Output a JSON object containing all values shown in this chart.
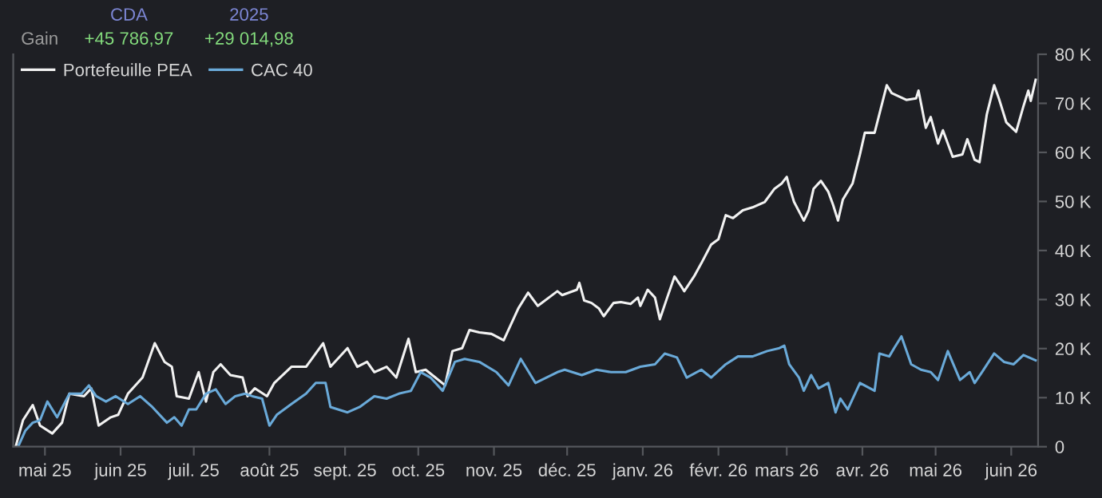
{
  "chart_data": {
    "type": "line",
    "annotations": [
      "CDA",
      "2025",
      "Gain",
      "+45 786,97",
      "+29 014,98"
    ],
    "series": [
      {
        "name": "Portefeuille PEA",
        "color": "#f2f2f2",
        "x": [
          "2025-04-19",
          "2025-04-22",
          "2025-04-26",
          "2025-04-29",
          "2025-05-04",
          "2025-05-08",
          "2025-05-11",
          "2025-05-17",
          "2025-05-20",
          "2025-05-23",
          "2025-05-28",
          "2025-05-31",
          "2025-06-04",
          "2025-06-10",
          "2025-06-15",
          "2025-06-19",
          "2025-06-22",
          "2025-06-24",
          "2025-06-29",
          "2025-07-03",
          "2025-07-06",
          "2025-07-09",
          "2025-07-12",
          "2025-07-16",
          "2025-07-21",
          "2025-07-23",
          "2025-07-26",
          "2025-07-31",
          "2025-08-03",
          "2025-08-10",
          "2025-08-16",
          "2025-08-23",
          "2025-08-26",
          "2025-09-02",
          "2025-09-06",
          "2025-09-10",
          "2025-09-13",
          "2025-09-18",
          "2025-09-22",
          "2025-09-27",
          "2025-09-30",
          "2025-10-04",
          "2025-10-08",
          "2025-10-12",
          "2025-10-15",
          "2025-10-19",
          "2025-10-22",
          "2025-10-26",
          "2025-10-31",
          "2025-11-05",
          "2025-11-11",
          "2025-11-15",
          "2025-11-19",
          "2025-11-27",
          "2025-11-29",
          "2025-12-05",
          "2025-12-06",
          "2025-12-08",
          "2025-12-11",
          "2025-12-14",
          "2025-12-16",
          "2025-12-20",
          "2025-12-23",
          "2025-12-27",
          "2025-12-30",
          "2025-12-31",
          "2026-01-03",
          "2026-01-06",
          "2026-01-08",
          "2026-01-11",
          "2026-01-14",
          "2026-01-17",
          "2026-01-18",
          "2026-01-22",
          "2026-01-25",
          "2026-01-29",
          "2026-02-01",
          "2026-02-04",
          "2026-02-07",
          "2026-02-11",
          "2026-02-15",
          "2026-02-20",
          "2026-02-24",
          "2026-02-27",
          "2026-03-01",
          "2026-03-02",
          "2026-03-04",
          "2026-03-08",
          "2026-03-10",
          "2026-03-12",
          "2026-03-15",
          "2026-03-18",
          "2026-03-20",
          "2026-03-22",
          "2026-03-24",
          "2026-03-28",
          "2026-03-31",
          "2026-04-02",
          "2026-04-06",
          "2026-04-11",
          "2026-04-13",
          "2026-04-19",
          "2026-04-23",
          "2026-04-24",
          "2026-04-27",
          "2026-04-29",
          "2026-05-02",
          "2026-05-04",
          "2026-05-08",
          "2026-05-12",
          "2026-05-14",
          "2026-05-17",
          "2026-05-19",
          "2026-05-22",
          "2026-05-25",
          "2026-05-27",
          "2026-05-30",
          "2026-06-03",
          "2026-06-06",
          "2026-06-08",
          "2026-06-09",
          "2026-06-11"
        ],
        "values": [
          0,
          5400,
          8500,
          4300,
          2700,
          4900,
          10800,
          10300,
          11900,
          4300,
          6000,
          6500,
          10800,
          14100,
          21100,
          17300,
          16300,
          10300,
          9800,
          15200,
          9200,
          15200,
          16800,
          14600,
          14100,
          10300,
          11900,
          10300,
          13000,
          16300,
          16300,
          21100,
          16300,
          20100,
          16300,
          17300,
          15200,
          16300,
          14100,
          22000,
          15200,
          15700,
          14100,
          12500,
          19500,
          20100,
          23800,
          23300,
          23000,
          21700,
          28200,
          31400,
          28700,
          31700,
          30900,
          32000,
          33400,
          29800,
          29300,
          28200,
          26600,
          29300,
          29500,
          29100,
          30400,
          28700,
          32000,
          30400,
          26000,
          30400,
          34700,
          32500,
          31700,
          34700,
          37400,
          41200,
          42300,
          47200,
          46600,
          48200,
          48800,
          49900,
          52600,
          53700,
          55000,
          53100,
          49900,
          46100,
          48200,
          52600,
          54200,
          52000,
          49300,
          46100,
          50400,
          53700,
          59600,
          64000,
          64000,
          73700,
          72100,
          70700,
          71000,
          72600,
          65000,
          67200,
          61800,
          64500,
          59100,
          59600,
          62700,
          58500,
          58000,
          67800,
          73700,
          70900,
          66100,
          64200,
          69400,
          72600,
          70500,
          74800
        ]
      },
      {
        "name": "CAC 40",
        "color": "#6aaad9",
        "x": [
          "2025-04-20",
          "2025-04-23",
          "2025-04-26",
          "2025-04-29",
          "2025-05-02",
          "2025-05-06",
          "2025-05-11",
          "2025-05-16",
          "2025-05-19",
          "2025-05-22",
          "2025-05-26",
          "2025-05-30",
          "2025-06-04",
          "2025-06-09",
          "2025-06-14",
          "2025-06-20",
          "2025-06-23",
          "2025-06-26",
          "2025-06-29",
          "2025-07-02",
          "2025-07-06",
          "2025-07-10",
          "2025-07-14",
          "2025-07-18",
          "2025-07-22",
          "2025-07-25",
          "2025-07-29",
          "2025-08-01",
          "2025-08-04",
          "2025-08-10",
          "2025-08-16",
          "2025-08-20",
          "2025-08-24",
          "2025-08-26",
          "2025-09-02",
          "2025-09-07",
          "2025-09-13",
          "2025-09-18",
          "2025-09-23",
          "2025-09-28",
          "2025-10-02",
          "2025-10-06",
          "2025-10-11",
          "2025-10-16",
          "2025-10-20",
          "2025-10-26",
          "2025-11-02",
          "2025-11-07",
          "2025-11-12",
          "2025-11-18",
          "2025-11-27",
          "2025-11-30",
          "2025-12-07",
          "2025-12-13",
          "2025-12-19",
          "2025-12-25",
          "2025-12-31",
          "2026-01-06",
          "2026-01-10",
          "2026-01-15",
          "2026-01-19",
          "2026-01-25",
          "2026-01-29",
          "2026-02-04",
          "2026-02-09",
          "2026-02-15",
          "2026-02-21",
          "2026-02-26",
          "2026-02-28",
          "2026-03-02",
          "2026-03-06",
          "2026-03-08",
          "2026-03-11",
          "2026-03-14",
          "2026-03-18",
          "2026-03-21",
          "2026-03-23",
          "2026-03-26",
          "2026-03-31",
          "2026-04-06",
          "2026-04-08",
          "2026-04-12",
          "2026-04-14",
          "2026-04-17",
          "2026-04-21",
          "2026-04-25",
          "2026-04-29",
          "2026-05-02",
          "2026-05-06",
          "2026-05-11",
          "2026-05-15",
          "2026-05-17",
          "2026-05-20",
          "2026-05-25",
          "2026-05-29",
          "2026-06-02",
          "2026-06-06",
          "2026-06-11"
        ],
        "values": [
          0,
          3300,
          4900,
          5400,
          9200,
          6000,
          10800,
          10800,
          12500,
          10300,
          9200,
          10300,
          8700,
          10300,
          8100,
          4900,
          6000,
          4300,
          7600,
          7600,
          10800,
          11700,
          8700,
          10300,
          10800,
          10300,
          9800,
          4300,
          6500,
          8700,
          10800,
          13000,
          13000,
          8100,
          7000,
          8100,
          10300,
          9800,
          10800,
          11400,
          15200,
          14100,
          11400,
          17300,
          17900,
          17300,
          15200,
          12500,
          17900,
          13000,
          15200,
          15700,
          14600,
          15700,
          15200,
          15200,
          16300,
          16800,
          19000,
          18200,
          14100,
          15700,
          14100,
          16800,
          18400,
          18400,
          19500,
          20100,
          20600,
          16800,
          14100,
          11400,
          14600,
          11900,
          13000,
          7000,
          9800,
          7600,
          13000,
          11400,
          19000,
          18400,
          20100,
          22500,
          16800,
          15700,
          15200,
          13600,
          19500,
          13600,
          15200,
          13000,
          15200,
          19000,
          17300,
          16800,
          18700,
          17600
        ]
      }
    ],
    "xlim": [
      "2025-04-18",
      "2026-06-12"
    ],
    "xticks": [
      {
        "value": "2025-05-01",
        "label": "mai 25"
      },
      {
        "value": "2025-06-01",
        "label": "juin 25"
      },
      {
        "value": "2025-07-01",
        "label": "juil. 25"
      },
      {
        "value": "2025-08-01",
        "label": "août 25"
      },
      {
        "value": "2025-09-01",
        "label": "sept. 25"
      },
      {
        "value": "2025-10-01",
        "label": "oct. 25"
      },
      {
        "value": "2025-11-01",
        "label": "nov. 25"
      },
      {
        "value": "2025-12-01",
        "label": "déc. 25"
      },
      {
        "value": "2026-01-01",
        "label": "janv. 26"
      },
      {
        "value": "2026-02-01",
        "label": "févr. 26"
      },
      {
        "value": "2026-03-01",
        "label": "mars 26"
      },
      {
        "value": "2026-04-01",
        "label": "avr. 26"
      },
      {
        "value": "2026-05-01",
        "label": "mai 26"
      },
      {
        "value": "2026-06-01",
        "label": "juin 26"
      }
    ],
    "ylim": [
      0,
      80000
    ],
    "yticks": [
      0,
      {
        "value": 10000,
        "label": "10 K"
      },
      {
        "value": 20000,
        "label": "20 K"
      },
      {
        "value": 30000,
        "label": "30 K"
      },
      {
        "value": 40000,
        "label": "40 K"
      },
      {
        "value": 50000,
        "label": "50 K"
      },
      {
        "value": 60000,
        "label": "60 K"
      },
      {
        "value": 70000,
        "label": "70 K"
      },
      {
        "value": 80000,
        "label": "80 K"
      }
    ],
    "grid": false,
    "legend": "top left",
    "marker": "none",
    "line_style": "solid"
  }
}
